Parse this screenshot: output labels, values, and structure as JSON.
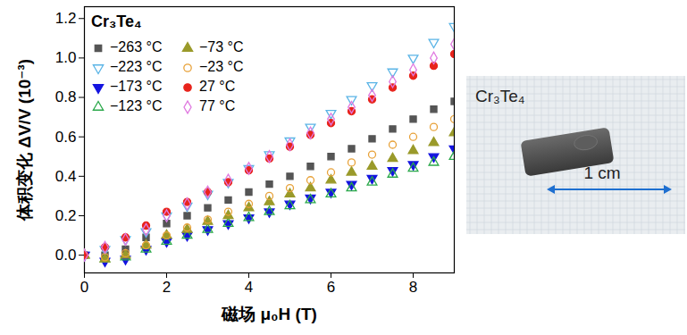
{
  "chart_data": {
    "type": "scatter",
    "title": "Cr₃Te₄",
    "x_label": "磁场 μ₀H (T)",
    "y_label": "体积变化 ΔV/V (10⁻³)",
    "xlim": [
      0,
      9
    ],
    "ylim": [
      -0.09,
      1.26
    ],
    "xticks": [
      0,
      2,
      4,
      6,
      8
    ],
    "yticks": [
      {
        "value": 0,
        "label": "0.0"
      },
      0.2,
      0.4,
      0.6,
      0.8,
      {
        "value": 1,
        "label": "1.0"
      },
      1.2
    ],
    "legend": "upper left",
    "x": [
      0,
      0.5,
      1,
      1.5,
      2,
      2.5,
      3,
      3.5,
      4,
      4.5,
      5,
      5.5,
      6,
      6.5,
      7,
      7.5,
      8,
      8.5,
      9
    ],
    "series": [
      {
        "name": "−263 °C",
        "color": "#555555",
        "marker": "square",
        "values": [
          0,
          0.0,
          0.03,
          0.09,
          0.16,
          0.2,
          0.24,
          0.28,
          0.32,
          0.36,
          0.4,
          0.45,
          0.5,
          0.54,
          0.59,
          0.64,
          0.69,
          0.74,
          0.78
        ]
      },
      {
        "name": "−223 °C",
        "color": "#5ab4e6",
        "marker": "triangle-down-open",
        "values": [
          0,
          0.03,
          0.08,
          0.12,
          0.2,
          0.25,
          0.31,
          0.37,
          0.44,
          0.51,
          0.58,
          0.65,
          0.72,
          0.79,
          0.86,
          0.93,
          1.0,
          1.08,
          1.16
        ]
      },
      {
        "name": "−173 °C",
        "color": "#1414e0",
        "marker": "triangle-down",
        "values": [
          0,
          -0.03,
          -0.02,
          0.03,
          0.07,
          0.1,
          0.13,
          0.16,
          0.19,
          0.22,
          0.26,
          0.29,
          0.32,
          0.36,
          0.39,
          0.43,
          0.46,
          0.5,
          0.54
        ]
      },
      {
        "name": "−123 °C",
        "color": "#2aa84a",
        "marker": "triangle-open",
        "values": [
          0,
          -0.02,
          -0.01,
          0.03,
          0.07,
          0.1,
          0.13,
          0.16,
          0.19,
          0.22,
          0.25,
          0.28,
          0.31,
          0.34,
          0.37,
          0.41,
          0.44,
          0.47,
          0.5
        ]
      },
      {
        "name": "−73 °C",
        "color": "#9a9a2a",
        "marker": "triangle",
        "values": [
          0,
          -0.02,
          0.0,
          0.05,
          0.1,
          0.13,
          0.17,
          0.2,
          0.24,
          0.27,
          0.31,
          0.34,
          0.38,
          0.42,
          0.45,
          0.49,
          0.53,
          0.57,
          0.62
        ]
      },
      {
        "name": "−23 °C",
        "color": "#e8a23a",
        "marker": "circle-open",
        "values": [
          0,
          -0.01,
          0.01,
          0.05,
          0.1,
          0.14,
          0.18,
          0.22,
          0.26,
          0.3,
          0.34,
          0.38,
          0.42,
          0.47,
          0.51,
          0.56,
          0.6,
          0.65,
          0.69
        ]
      },
      {
        "name": "27 °C",
        "color": "#e8241c",
        "marker": "circle",
        "values": [
          0,
          0.04,
          0.09,
          0.15,
          0.22,
          0.27,
          0.32,
          0.37,
          0.43,
          0.49,
          0.55,
          0.61,
          0.67,
          0.73,
          0.79,
          0.85,
          0.91,
          0.96,
          1.02
        ]
      },
      {
        "name": "77 °C",
        "color": "#e07ae0",
        "marker": "diamond-open",
        "values": [
          0,
          0.04,
          0.08,
          0.13,
          0.2,
          0.26,
          0.32,
          0.38,
          0.44,
          0.5,
          0.56,
          0.62,
          0.69,
          0.75,
          0.81,
          0.88,
          0.94,
          1.0,
          1.07
        ]
      }
    ]
  },
  "photo": {
    "label": "Cr₃Te₄",
    "scale_bar": "1 cm"
  }
}
